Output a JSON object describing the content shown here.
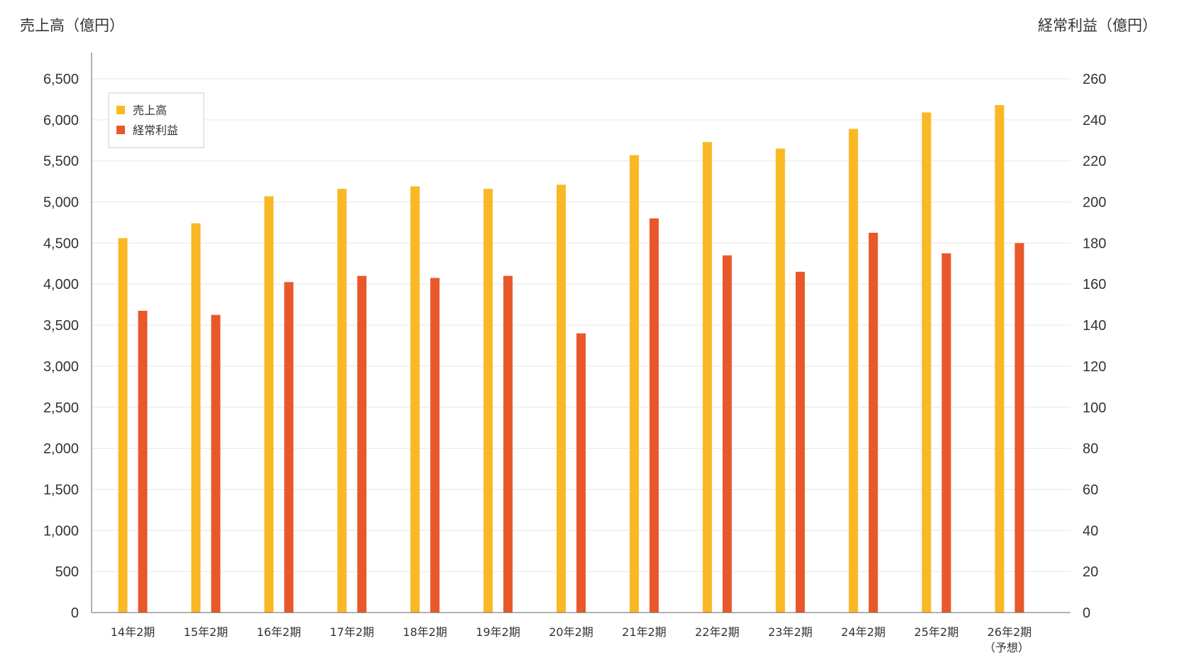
{
  "chart_data": {
    "type": "bar",
    "left_axis_title": "売上高（億円）",
    "right_axis_title": "経常利益（億円）",
    "categories": [
      {
        "label": "14年2期",
        "sub": ""
      },
      {
        "label": "15年2期",
        "sub": ""
      },
      {
        "label": "16年2期",
        "sub": ""
      },
      {
        "label": "17年2期",
        "sub": ""
      },
      {
        "label": "18年2期",
        "sub": ""
      },
      {
        "label": "19年2期",
        "sub": ""
      },
      {
        "label": "20年2期",
        "sub": ""
      },
      {
        "label": "21年2期",
        "sub": ""
      },
      {
        "label": "22年2期",
        "sub": ""
      },
      {
        "label": "23年2期",
        "sub": ""
      },
      {
        "label": "24年2期",
        "sub": ""
      },
      {
        "label": "25年2期",
        "sub": ""
      },
      {
        "label": "26年2期",
        "sub": "（予想）"
      }
    ],
    "series": [
      {
        "name": "売上高",
        "axis": "left",
        "color": "#F9B824",
        "values": [
          4560,
          4740,
          5070,
          5160,
          5190,
          5160,
          5210,
          5570,
          5730,
          5650,
          5890,
          6090,
          6180
        ]
      },
      {
        "name": "経常利益",
        "axis": "right",
        "color": "#E8582A",
        "values": [
          147,
          145,
          161,
          164,
          163,
          164,
          136,
          192,
          174,
          166,
          185,
          175,
          180
        ]
      }
    ],
    "left_axis": {
      "min": 0,
      "max": 6500,
      "ticks": [
        0,
        500,
        1000,
        1500,
        2000,
        2500,
        3000,
        3500,
        4000,
        4500,
        5000,
        5500,
        6000,
        6500
      ],
      "tick_labels": [
        "0",
        "500",
        "1,000",
        "1,500",
        "2,000",
        "2,500",
        "3,000",
        "3,500",
        "4,000",
        "4,500",
        "5,000",
        "5,500",
        "6,000",
        "6,500"
      ]
    },
    "right_axis": {
      "min": 0,
      "max": 260,
      "ticks": [
        0,
        20,
        40,
        60,
        80,
        100,
        120,
        140,
        160,
        180,
        200,
        220,
        240,
        260
      ],
      "tick_labels": [
        "0",
        "20",
        "40",
        "60",
        "80",
        "100",
        "120",
        "140",
        "160",
        "180",
        "200",
        "220",
        "240",
        "260"
      ]
    },
    "grid": true,
    "legend_position": "top-left"
  }
}
